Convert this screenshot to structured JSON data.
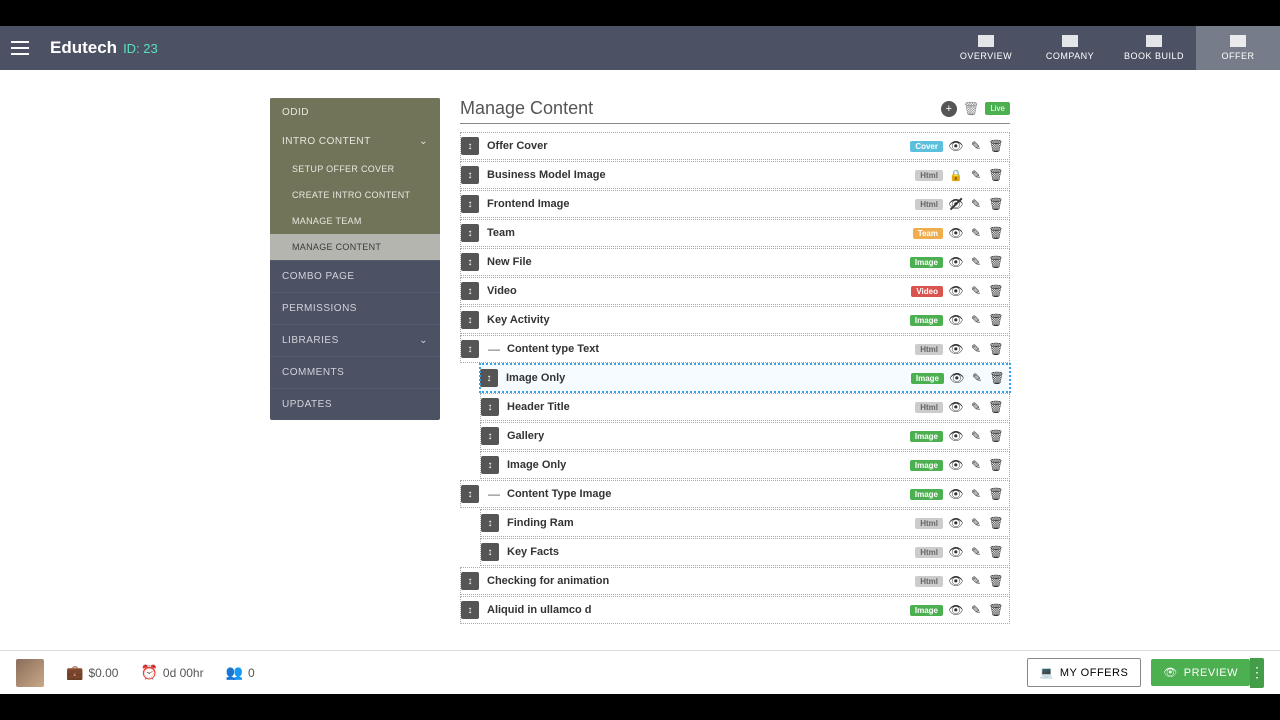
{
  "header": {
    "brand": "Edutech",
    "id_label": "ID: 23",
    "nav": [
      {
        "label": "OVERVIEW"
      },
      {
        "label": "COMPANY"
      },
      {
        "label": "BOOK BUILD"
      },
      {
        "label": "OFFER"
      }
    ]
  },
  "sidebar": {
    "top_label": "ODID",
    "section_label": "INTRO CONTENT",
    "subs": [
      {
        "label": "SETUP OFFER COVER"
      },
      {
        "label": "CREATE INTRO CONTENT"
      },
      {
        "label": "MANAGE TEAM"
      },
      {
        "label": "MANAGE CONTENT"
      }
    ],
    "items": [
      {
        "label": "COMBO PAGE"
      },
      {
        "label": "PERMISSIONS"
      },
      {
        "label": "LIBRARIES"
      },
      {
        "label": "COMMENTS"
      },
      {
        "label": "UPDATES"
      }
    ]
  },
  "content": {
    "title": "Manage Content",
    "live_label": "Live",
    "rows": [
      {
        "label": "Offer Cover",
        "tag": "Cover",
        "tag_class": "tag-cover",
        "indent": 0,
        "vis": "eye"
      },
      {
        "label": "Business Model Image",
        "tag": "Html",
        "tag_class": "tag-html",
        "indent": 0,
        "vis": "lock"
      },
      {
        "label": "Frontend Image",
        "tag": "Html",
        "tag_class": "tag-html",
        "indent": 0,
        "vis": "eye-off"
      },
      {
        "label": "Team",
        "tag": "Team",
        "tag_class": "tag-team",
        "indent": 0,
        "vis": "eye"
      },
      {
        "label": "New File",
        "tag": "Image",
        "tag_class": "tag-image",
        "indent": 0,
        "vis": "eye"
      },
      {
        "label": "Video",
        "tag": "Video",
        "tag_class": "tag-video",
        "indent": 0,
        "vis": "eye"
      },
      {
        "label": "Key Activity",
        "tag": "Image",
        "tag_class": "tag-image",
        "indent": 0,
        "vis": "eye"
      },
      {
        "label": "Content type Text",
        "tag": "Html",
        "tag_class": "tag-html",
        "indent": 0,
        "vis": "eye",
        "collapse": true
      },
      {
        "label": "Image Only",
        "tag": "Image",
        "tag_class": "tag-image",
        "indent": 1,
        "vis": "eye",
        "dragging": true
      },
      {
        "label": "Header Title",
        "tag": "Html",
        "tag_class": "tag-html",
        "indent": 1,
        "vis": "eye"
      },
      {
        "label": "Gallery",
        "tag": "Image",
        "tag_class": "tag-image",
        "indent": 1,
        "vis": "eye"
      },
      {
        "label": "Image Only",
        "tag": "Image",
        "tag_class": "tag-image",
        "indent": 1,
        "vis": "eye"
      },
      {
        "label": "Content Type Image",
        "tag": "Image",
        "tag_class": "tag-image",
        "indent": 0,
        "vis": "eye",
        "collapse": true
      },
      {
        "label": "Finding Ram",
        "tag": "Html",
        "tag_class": "tag-html",
        "indent": 1,
        "vis": "eye"
      },
      {
        "label": "Key Facts",
        "tag": "Html",
        "tag_class": "tag-html",
        "indent": 1,
        "vis": "eye"
      },
      {
        "label": "Checking for animation",
        "tag": "Html",
        "tag_class": "tag-html",
        "indent": 0,
        "vis": "eye"
      },
      {
        "label": "Aliquid in ullamco d",
        "tag": "Image",
        "tag_class": "tag-image",
        "indent": 0,
        "vis": "eye"
      }
    ]
  },
  "footer": {
    "money": "$0.00",
    "time": "0d 00hr",
    "people": "0",
    "my_offers": "MY OFFERS",
    "preview": "PREVIEW"
  }
}
